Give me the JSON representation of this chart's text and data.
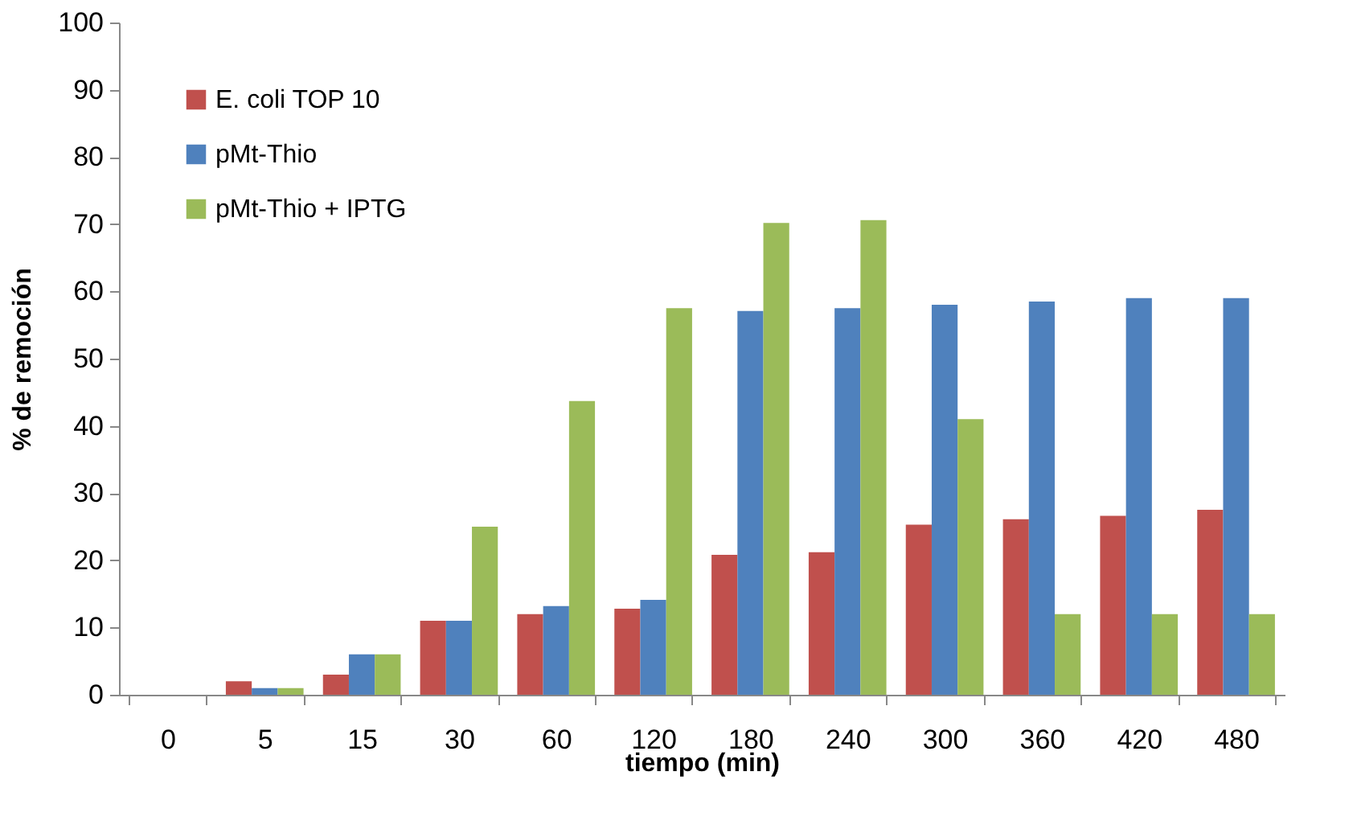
{
  "chart_data": {
    "type": "bar",
    "xlabel": "tiempo (min)",
    "ylabel": "% de remoción",
    "categories": [
      "0",
      "5",
      "15",
      "30",
      "60",
      "120",
      "180",
      "240",
      "300",
      "360",
      "420",
      "480"
    ],
    "series": [
      {
        "name": "E. coli TOP 10",
        "color": "#c0504d",
        "values": [
          0,
          2,
          3,
          11,
          12,
          12.8,
          20.8,
          21.2,
          25.3,
          26.1,
          26.6,
          27.5
        ]
      },
      {
        "name": "pMt-Thio",
        "color": "#4f81bd",
        "values": [
          0,
          1,
          6,
          11,
          13.2,
          14.1,
          57.1,
          57.5,
          58,
          58.5,
          59,
          59
        ]
      },
      {
        "name": "pMt-Thio + IPTG",
        "color": "#9bbb59",
        "values": [
          0,
          1,
          6,
          25,
          43.7,
          57.5,
          70.2,
          70.6,
          41,
          12,
          12,
          12
        ]
      }
    ],
    "ylim": [
      0,
      100
    ],
    "yticks": [
      0,
      10,
      20,
      30,
      40,
      50,
      60,
      70,
      80,
      90,
      100
    ],
    "grid": false,
    "legend": "top left"
  }
}
